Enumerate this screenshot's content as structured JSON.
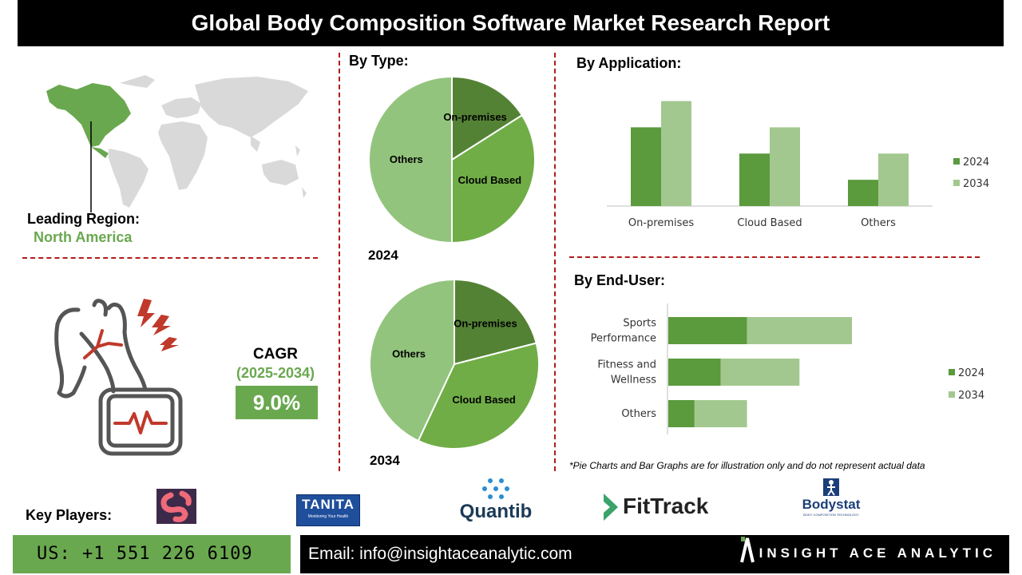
{
  "title": "Global Body Composition Software Market Research Report",
  "region": {
    "leading_label": "Leading Region:",
    "leading_value": "North America"
  },
  "cagr": {
    "label": "CAGR",
    "period": "(2025-2034)",
    "value": "9.0%"
  },
  "sections": {
    "by_type": "By Type:",
    "by_application": "By  Application:",
    "by_end_user": "By End-User:"
  },
  "chart_data": [
    {
      "type": "pie",
      "title": "By Type:",
      "year": "2024",
      "labels": [
        "On-premises",
        "Cloud Based",
        "Others"
      ],
      "values": [
        16,
        34,
        50
      ],
      "colors": [
        "#548235",
        "#70ad47",
        "#93c47d"
      ]
    },
    {
      "type": "pie",
      "title": "",
      "year": "2034",
      "labels": [
        "On-premises",
        "Cloud Based",
        "Others"
      ],
      "values": [
        21,
        36,
        43
      ],
      "colors": [
        "#548235",
        "#70ad47",
        "#93c47d"
      ]
    },
    {
      "type": "bar",
      "title": "By  Application:",
      "categories": [
        "On-premises",
        "Cloud Based",
        "Others"
      ],
      "series": [
        {
          "name": "2024",
          "values": [
            3,
            2,
            1
          ],
          "color": "#5b9a3d"
        },
        {
          "name": "2034",
          "values": [
            4,
            3,
            2
          ],
          "color": "#a3c88f"
        }
      ],
      "ylim": [
        0,
        4.2
      ],
      "legend": "right"
    },
    {
      "type": "bar",
      "orientation": "horizontal",
      "stacked": true,
      "title": "By End-User:",
      "categories": [
        "Sports Performance",
        "Fitness and Wellness",
        "Others"
      ],
      "category_lines": [
        [
          "Sports",
          "Performance"
        ],
        [
          "Fitness and",
          "Wellness"
        ],
        [
          "Others"
        ]
      ],
      "series": [
        {
          "name": "2024",
          "values": [
            3,
            2,
            1
          ],
          "color": "#5b9a3d"
        },
        {
          "name": "2034",
          "values": [
            4,
            3,
            2
          ],
          "color": "#a3c88f"
        }
      ],
      "xlim": [
        0,
        7
      ],
      "legend": "right"
    }
  ],
  "note": "*Pie Charts and Bar Graphs are for illustration only and do not represent actual data",
  "key_players": {
    "label": "Key Players:",
    "logos": [
      "TANITA",
      "Quantib",
      "FitTrack",
      "Bodystat"
    ],
    "tanita_tagline": "Monitoring Your Health",
    "bodystat_tagline": "BODY COMPOSITION TECHNOLOGY"
  },
  "footer": {
    "phone": "US: +1 551 226 6109",
    "email": "Email: info@insightaceanalytic.com",
    "brand": "INSIGHT ACE ANALYTIC"
  },
  "colors": {
    "accent_green": "#6aa84f",
    "divider_red": "#b01c1c",
    "dark": "#000000"
  }
}
